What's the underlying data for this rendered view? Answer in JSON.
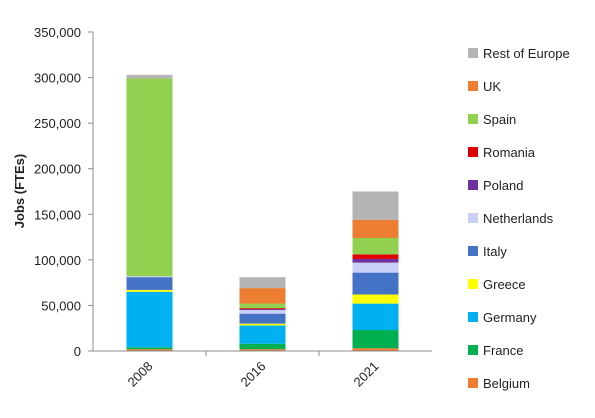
{
  "chart_data": {
    "type": "bar",
    "stacked": true,
    "title": "",
    "xlabel": "",
    "ylabel": "Jobs (FTEs)",
    "ylim": [
      0,
      350000
    ],
    "y_ticks": [
      0,
      50000,
      100000,
      150000,
      200000,
      250000,
      300000,
      350000
    ],
    "y_tick_labels": [
      "0",
      "50,000",
      "100,000",
      "150,000",
      "200,000",
      "250,000",
      "300,000",
      "350,000"
    ],
    "categories": [
      "2008",
      "2016",
      "2021"
    ],
    "grid": false,
    "legend_position": "right",
    "series": [
      {
        "name": "Belgium",
        "color": "#ED7D31",
        "values": [
          2000,
          2000,
          3000
        ]
      },
      {
        "name": "France",
        "color": "#00B050",
        "values": [
          2000,
          6000,
          20000
        ]
      },
      {
        "name": "Germany",
        "color": "#00B0F0",
        "values": [
          61000,
          20000,
          29000
        ]
      },
      {
        "name": "Greece",
        "color": "#FFFF00",
        "values": [
          2000,
          2000,
          10000
        ]
      },
      {
        "name": "Italy",
        "color": "#4472C4",
        "values": [
          14000,
          11000,
          24000
        ]
      },
      {
        "name": "Netherlands",
        "color": "#C9CFF7",
        "values": [
          1000,
          4000,
          11000
        ]
      },
      {
        "name": "Poland",
        "color": "#7030A0",
        "values": [
          0,
          1000,
          4000
        ]
      },
      {
        "name": "Romania",
        "color": "#E00000",
        "values": [
          0,
          1000,
          5000
        ]
      },
      {
        "name": "Spain",
        "color": "#92D050",
        "values": [
          217000,
          5000,
          18000
        ]
      },
      {
        "name": "UK",
        "color": "#ED7D31",
        "values": [
          0,
          17000,
          20000
        ]
      },
      {
        "name": "Rest of Europe",
        "color": "#B4B4B4",
        "values": [
          4000,
          12000,
          31000
        ]
      }
    ]
  }
}
